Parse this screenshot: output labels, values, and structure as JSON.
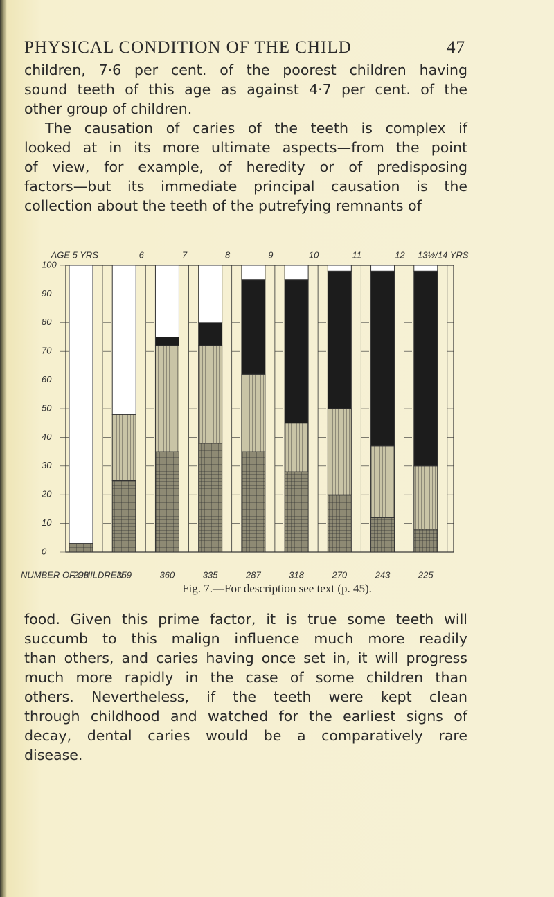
{
  "header": {
    "title": "PHYSICAL CONDITION OF THE CHILD",
    "page": "47"
  },
  "paragraph_1": [
    "children, 7·6 per cent. of the poorest children having",
    "sound teeth of this age as against 4·7 per cent. of the",
    "other group of children.",
    "The causation of caries of the teeth is complex if",
    "looked at in its more ultimate aspects—from the point",
    "of view, for example, of heredity or of predisposing",
    "factors—but its immediate principal causation is the",
    "collection about the teeth of the putrefying remnants of"
  ],
  "chart_data": {
    "type": "bar",
    "categories": [
      "AGE 5 YRS",
      "6",
      "7",
      "8",
      "9",
      "10",
      "11",
      "12",
      "13½/14 YRS"
    ],
    "counts_label": "NUMBER OF CHILDREN",
    "counts": [
      "293",
      "359",
      "360",
      "335",
      "287",
      "318",
      "270",
      "243",
      "225"
    ],
    "series": [
      {
        "color": "#8e8a74",
        "values": [
          3,
          25,
          35,
          38,
          35,
          28,
          20,
          12,
          8
        ]
      },
      {
        "color": "#c9c4a6",
        "values": [
          0,
          23,
          37,
          34,
          27,
          17,
          30,
          25,
          22
        ]
      },
      {
        "color": "#1c1c1c",
        "values": [
          0,
          0,
          3,
          8,
          33,
          50,
          48,
          61,
          68
        ]
      },
      {
        "color": "#ffffff",
        "values": [
          97,
          52,
          25,
          20,
          5,
          5,
          2,
          2,
          2
        ]
      }
    ],
    "ylim": [
      0,
      100
    ],
    "yticks": [
      0,
      10,
      20,
      30,
      40,
      50,
      60,
      70,
      80,
      90,
      100
    ]
  },
  "caption": "Fig. 7.—For description see text (p. 45).",
  "paragraph_2": [
    "food. Given this prime factor, it is true some teeth will",
    "succumb to this malign influence much more readily",
    "than others, and caries having once set in, it will progress",
    "much more rapidly in the case of some children than",
    "others. Nevertheless, if the teeth were kept clean",
    "through childhood and watched for the earliest signs of",
    "decay, dental caries would be a comparatively rare",
    "disease."
  ]
}
